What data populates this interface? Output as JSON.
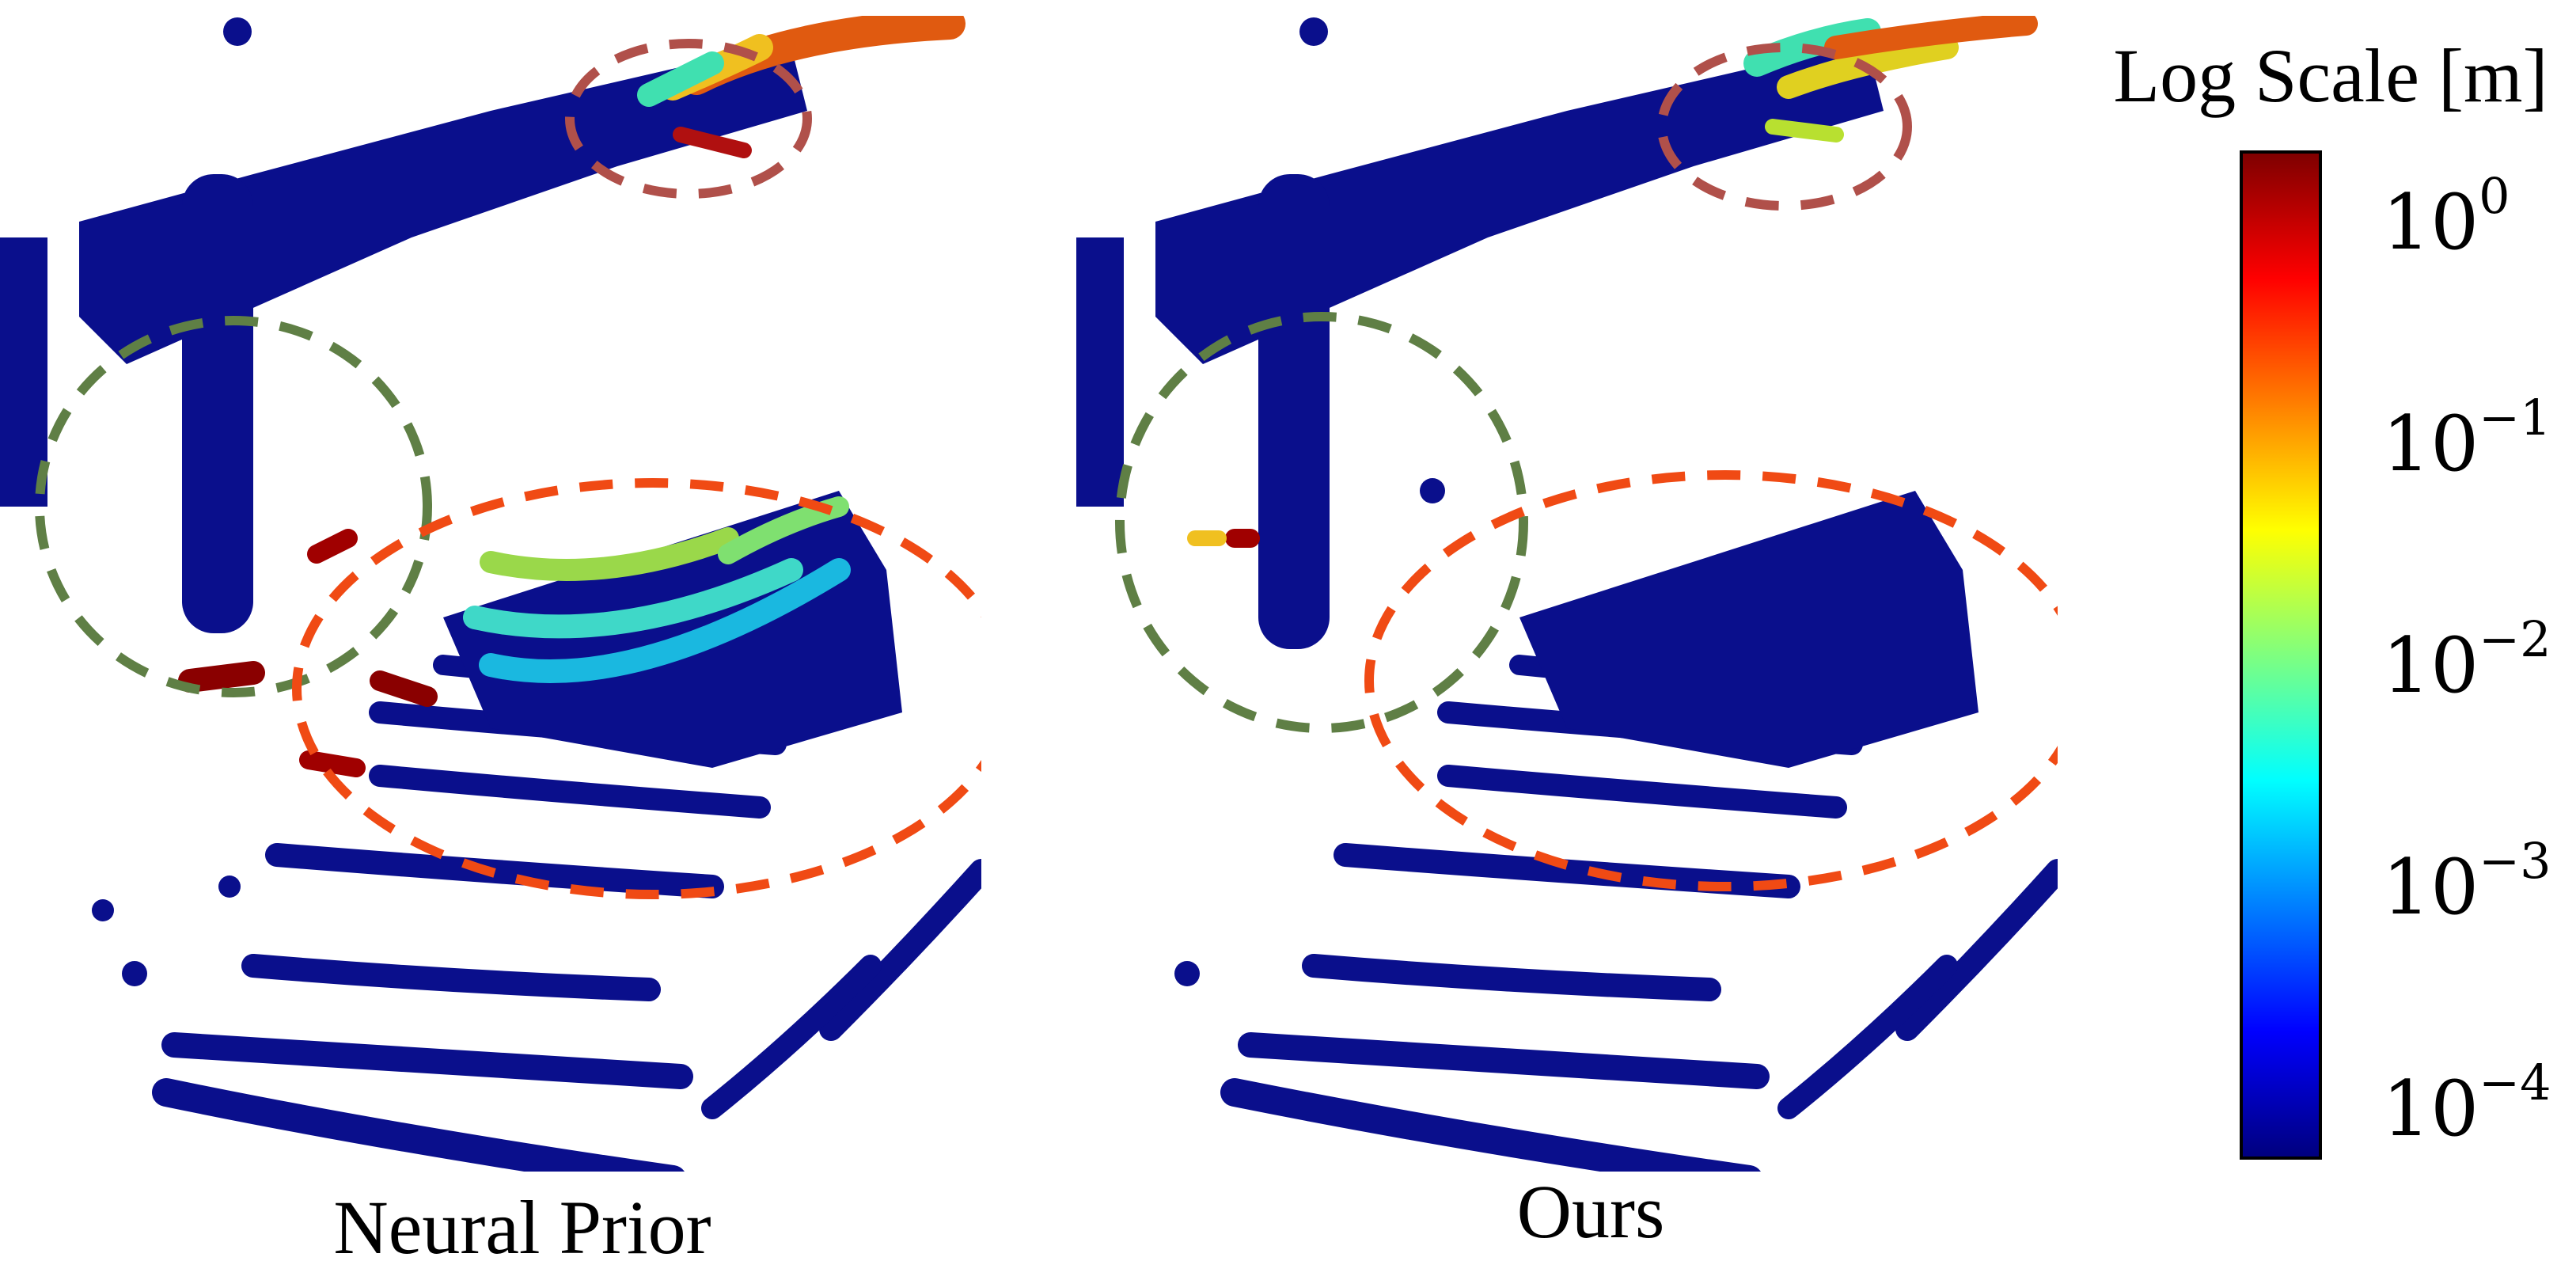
{
  "captions": {
    "left": "Neural Prior",
    "right": "Ours"
  },
  "colorbar": {
    "title": "Log Scale [m]",
    "scale": "log",
    "ticks": [
      {
        "base": "10",
        "exp": "0"
      },
      {
        "base": "10",
        "exp": "−1"
      },
      {
        "base": "10",
        "exp": "−2"
      },
      {
        "base": "10",
        "exp": "−3"
      },
      {
        "base": "10",
        "exp": "−4"
      }
    ],
    "colormap": [
      "#00007f",
      "#0000ff",
      "#007fff",
      "#00ffff",
      "#7fff7f",
      "#ffff00",
      "#ff7f00",
      "#ff0000",
      "#7f0000"
    ]
  },
  "annotations": {
    "green_circle_color": "#5f7f45",
    "orange_circle_color": "#f04a14",
    "brown_circle_color": "#b0504a"
  },
  "point_colors": {
    "base": "#0a0f8c",
    "dark": "#03065c"
  }
}
